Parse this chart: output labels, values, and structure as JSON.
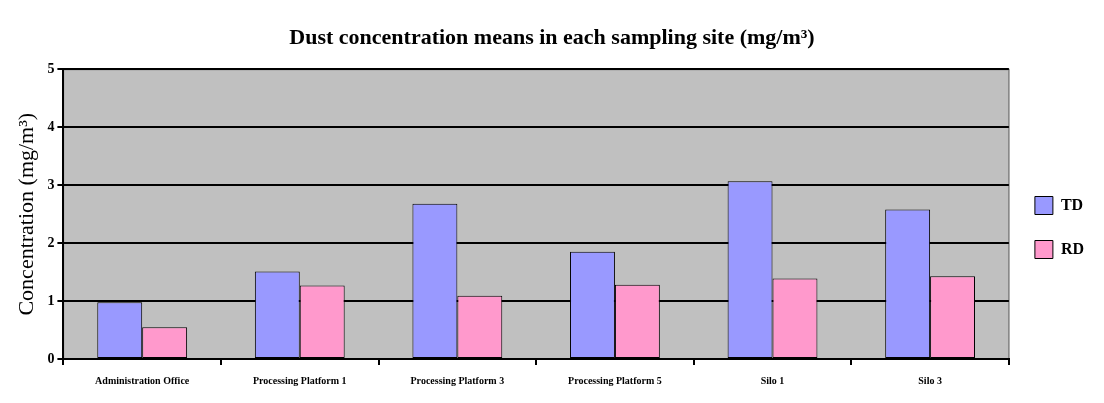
{
  "chart_data": {
    "type": "bar",
    "title": "Dust concentration means in each sampling site (mg/m³)",
    "ylabel": "Concentration (mg/m³)",
    "categories": [
      "Administration Office",
      "Processing Platform 1",
      "Processing Platform 3",
      "Processing Platform 5",
      "Silo 1",
      "Silo 3"
    ],
    "series": [
      {
        "name": "TD",
        "color": "#9999ff",
        "values": [
          0.98,
          1.51,
          2.68,
          1.85,
          3.07,
          2.58
        ]
      },
      {
        "name": "RD",
        "color": "#ff99cc",
        "values": [
          0.55,
          1.27,
          1.09,
          1.28,
          1.39,
          1.43
        ]
      }
    ],
    "ylim": [
      0,
      5
    ],
    "yticks": [
      0,
      1,
      2,
      3,
      4,
      5
    ],
    "grid": "y",
    "legend": "right"
  }
}
